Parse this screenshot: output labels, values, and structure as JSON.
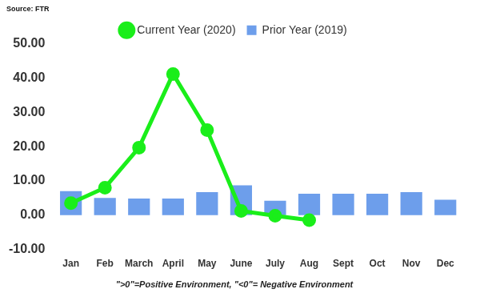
{
  "chart_data": {
    "type": "bar",
    "annotations": [
      "Source: FTR",
      "\">0\"=Positive Environment, \"<0\"= Negative Environment"
    ],
    "categories": [
      "Jan",
      "Feb",
      "March",
      "April",
      "May",
      "June",
      "July",
      "Aug",
      "Sept",
      "Oct",
      "Nov",
      "Dec"
    ],
    "series": [
      {
        "name": "Prior Year (2019)",
        "type": "bar",
        "color": "#6d9eeb",
        "values": [
          7.0,
          5.0,
          4.8,
          4.8,
          6.7,
          8.7,
          4.2,
          6.2,
          6.2,
          6.2,
          6.7,
          4.5
        ]
      },
      {
        "name": "Current Year (2020)",
        "type": "line",
        "color": "#1aee1a",
        "marker": "circle",
        "values": [
          3.5,
          8.0,
          19.7,
          41.2,
          24.8,
          1.2,
          -0.2,
          -1.5,
          null,
          null,
          null,
          null
        ]
      }
    ],
    "ylim": [
      -10,
      50
    ],
    "yticks": [
      {
        "value": -10,
        "label": "-10.00"
      },
      {
        "value": 0,
        "label": "0.00"
      },
      {
        "value": 10,
        "label": "10.00"
      },
      {
        "value": 20,
        "label": "20.00"
      },
      {
        "value": 30,
        "label": "30.00"
      },
      {
        "value": 40,
        "label": "40.00"
      },
      {
        "value": 50,
        "label": "50.00"
      }
    ],
    "grid": false,
    "legend": "top"
  }
}
